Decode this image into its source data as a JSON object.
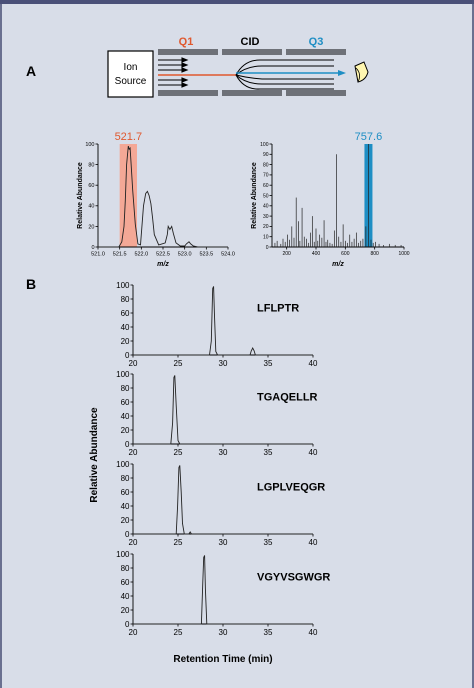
{
  "colors": {
    "background": "#d8dde8",
    "top_bar": "#4a5078",
    "frame": "#6a7090",
    "q1_accent": "#e0582e",
    "q3_accent": "#1e8ec4",
    "q1_highlight": "#f4a896",
    "q3_highlight": "#1e8ec4",
    "rod": "#6e7178",
    "trace": "#222222"
  },
  "panel_a": {
    "label": "A",
    "diagram": {
      "ion_source_label_line1": "Ion",
      "ion_source_label_line2": "Source",
      "q1_label": "Q1",
      "cid_label": "CID",
      "q3_label": "Q3",
      "detector_icon": "detector-icon"
    },
    "ms1_spectrum": {
      "type": "line",
      "highlight_label": "521.7",
      "highlight_range": [
        521.5,
        521.9
      ],
      "xlabel": "m/z",
      "ylabel": "Relative Abundance",
      "xlim": [
        521.0,
        524.0
      ],
      "ylim": [
        0,
        100
      ],
      "x_ticks": [
        "521.0",
        "521.5",
        "522.0",
        "522.5",
        "523.0",
        "523.5",
        "524.0"
      ],
      "y_ticks": [
        "0",
        "20",
        "40",
        "60",
        "80",
        "100"
      ],
      "x": [
        521.0,
        521.48,
        521.55,
        521.6,
        521.63,
        521.66,
        521.7,
        521.72,
        521.74,
        521.76,
        521.8,
        521.86,
        521.92,
        521.98,
        522.05,
        522.1,
        522.14,
        522.18,
        522.22,
        522.26,
        522.3,
        522.4,
        522.55,
        522.6,
        522.62,
        522.66,
        522.7,
        522.74,
        522.8,
        522.9,
        523.0,
        523.04,
        523.1,
        523.14,
        523.2,
        523.3,
        523.5,
        524.0
      ],
      "y": [
        0,
        0,
        5,
        20,
        45,
        80,
        98,
        95,
        96,
        84,
        55,
        22,
        3,
        2,
        40,
        52,
        54,
        50,
        42,
        28,
        12,
        2,
        4,
        12,
        20,
        17,
        20,
        13,
        4,
        1,
        1,
        3,
        5,
        3,
        1,
        0,
        0,
        0
      ]
    },
    "ms2_spectrum": {
      "type": "bar",
      "highlight_label": "757.6",
      "highlight_value": 757.6,
      "xlabel": "m/z",
      "ylabel": "Relative Abundance",
      "xlim": [
        100,
        1000
      ],
      "ylim": [
        0,
        100
      ],
      "x_ticks": [
        "200",
        "400",
        "600",
        "800",
        "1000"
      ],
      "y_ticks": [
        "0",
        "10",
        "20",
        "30",
        "40",
        "50",
        "60",
        "70",
        "80",
        "90",
        "100"
      ],
      "peaks_x": [
        120,
        135,
        160,
        175,
        190,
        205,
        220,
        235,
        250,
        265,
        280,
        290,
        305,
        320,
        335,
        350,
        362,
        375,
        388,
        400,
        412,
        425,
        440,
        455,
        468,
        480,
        495,
        510,
        525,
        540,
        555,
        570,
        585,
        600,
        615,
        630,
        645,
        660,
        675,
        690,
        705,
        720,
        740,
        757.6,
        775,
        790,
        805,
        830,
        860,
        900,
        940,
        980
      ],
      "peaks_y": [
        4,
        6,
        3,
        8,
        5,
        12,
        7,
        20,
        9,
        48,
        25,
        6,
        38,
        10,
        8,
        4,
        14,
        30,
        5,
        18,
        6,
        12,
        9,
        26,
        5,
        7,
        4,
        3,
        16,
        90,
        10,
        5,
        22,
        6,
        4,
        12,
        5,
        8,
        14,
        4,
        6,
        8,
        20,
        100,
        7,
        4,
        5,
        3,
        2,
        3,
        2,
        2
      ]
    }
  },
  "panel_b": {
    "label": "B",
    "ylabel": "Relative Abundance",
    "xlabel": "Retention Time (min)",
    "x_ticks": [
      "20",
      "25",
      "30",
      "35",
      "40"
    ],
    "y_ticks": [
      "0",
      "20",
      "40",
      "60",
      "80",
      "100"
    ],
    "xlim": [
      20,
      40
    ],
    "ylim": [
      0,
      100
    ],
    "chromatograms": [
      {
        "name": "LFLPTR",
        "x": [
          20,
          28.5,
          28.7,
          28.85,
          28.95,
          29.05,
          29.2,
          29.4,
          33.0,
          33.15,
          33.3,
          33.45,
          33.6,
          40
        ],
        "y": [
          0,
          0,
          20,
          95,
          98,
          60,
          5,
          0,
          0,
          6,
          10,
          6,
          0,
          0
        ]
      },
      {
        "name": "TGAQELLR",
        "x": [
          20,
          24.2,
          24.4,
          24.55,
          24.65,
          24.8,
          25.0,
          25.2,
          40
        ],
        "y": [
          0,
          0,
          30,
          95,
          98,
          55,
          5,
          0,
          0
        ]
      },
      {
        "name": "LGPLVEQGR",
        "x": [
          20,
          24.8,
          24.95,
          25.1,
          25.2,
          25.35,
          25.5,
          25.7,
          26.2,
          26.35,
          26.5,
          40
        ],
        "y": [
          0,
          0,
          40,
          95,
          98,
          60,
          15,
          0,
          0,
          3,
          0,
          0
        ]
      },
      {
        "name": "VGYVSGWGR",
        "x": [
          20,
          27.6,
          27.75,
          27.85,
          27.95,
          28.05,
          28.2,
          40
        ],
        "y": [
          0,
          0,
          60,
          95,
          98,
          50,
          0,
          0
        ]
      }
    ]
  }
}
